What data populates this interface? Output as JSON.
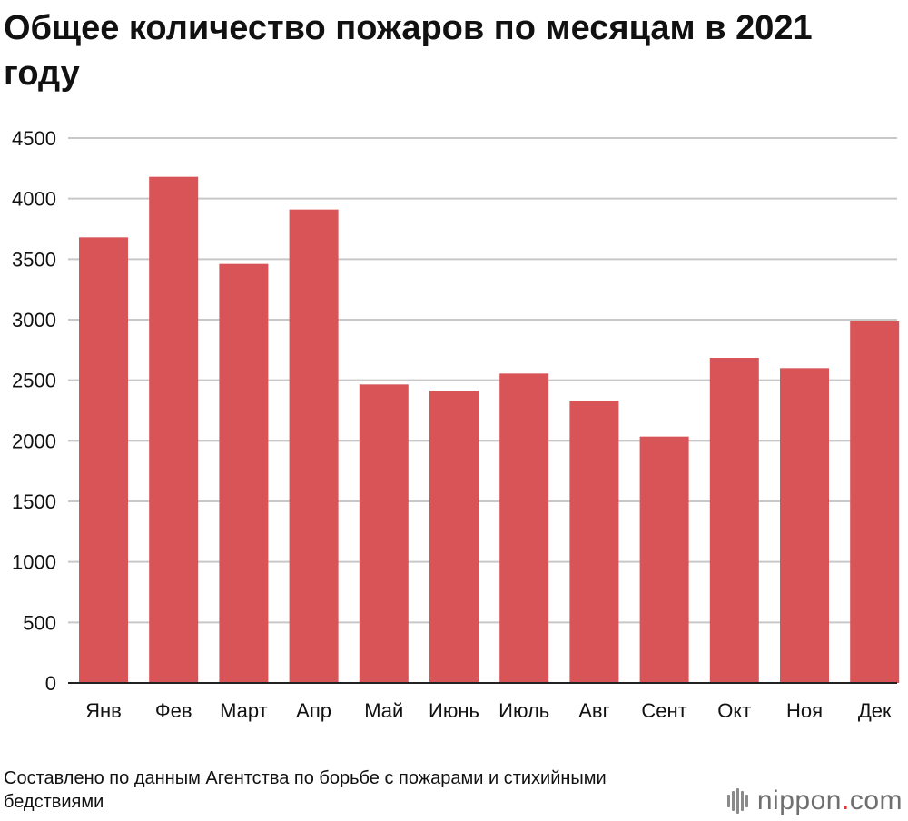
{
  "chart_data": {
    "type": "bar",
    "title": "Общее количество пожаров по месяцам в 2021 году",
    "xlabel": "",
    "ylabel": "",
    "categories": [
      "Янв",
      "Фев",
      "Март",
      "Апр",
      "Май",
      "Июнь",
      "Июль",
      "Авг",
      "Сент",
      "Окт",
      "Ноя",
      "Дек"
    ],
    "values": [
      3680,
      4180,
      3460,
      3910,
      2465,
      2415,
      2555,
      2330,
      2035,
      2685,
      2600,
      2990
    ],
    "ylim": [
      0,
      4500
    ],
    "yticks": [
      0,
      500,
      1000,
      1500,
      2000,
      2500,
      3000,
      3500,
      4000,
      4500
    ],
    "grid": true,
    "legend": "none",
    "bar_color": "#d95456",
    "grid_color": "#c8c8c8",
    "axis_color": "#222222"
  },
  "source_note": "Составлено по данным Агентства по борьбе с пожарами и стихийными бедствиями",
  "logo": {
    "name": "nippon",
    "dot": ".",
    "suffix": "com",
    "icon": "nippon-logo-icon"
  }
}
